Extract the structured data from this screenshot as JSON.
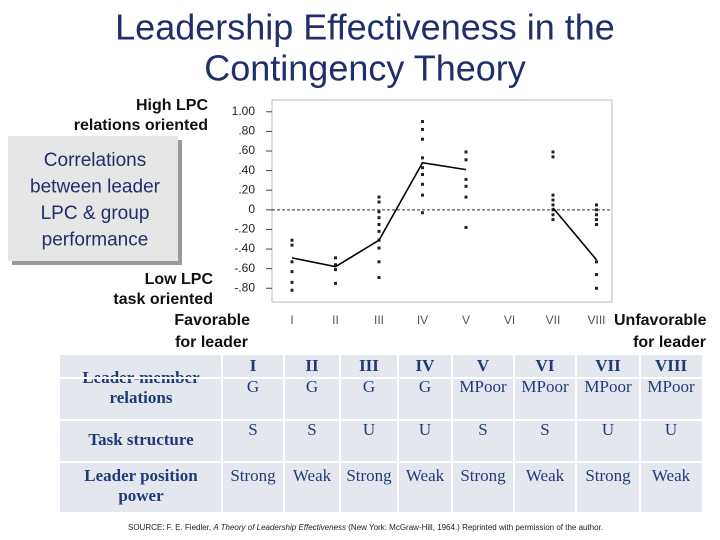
{
  "title": [
    "Leadership Effectiveness in the",
    "Contingency Theory"
  ],
  "chart_data": {
    "type": "line",
    "y_label": [
      "Correlations",
      "between leader",
      "LPC & group",
      "performance"
    ],
    "annotations": {
      "high": [
        "High LPC",
        "relations oriented"
      ],
      "low": [
        "Low LPC",
        "task oriented"
      ],
      "favorable": [
        "Favorable",
        "for leader"
      ],
      "unfavorable": [
        "Unfavorable",
        "for leader"
      ]
    },
    "categories": [
      "I",
      "II",
      "III",
      "IV",
      "V",
      "VI",
      "VII",
      "VIII"
    ],
    "series": [
      {
        "color": "#000000",
        "values": [
          -0.49,
          -0.58,
          -0.31,
          0.48,
          0.41,
          null,
          0.02,
          -0.51
        ]
      }
    ],
    "points": [
      [
        -0.31,
        -0.36,
        -0.53,
        -0.63,
        -0.74,
        -0.82
      ],
      [
        -0.49,
        -0.56,
        -0.61,
        -0.75
      ],
      [
        0.13,
        0.08,
        -0.02,
        -0.08,
        -0.15,
        -0.22,
        -0.31,
        -0.39,
        -0.53,
        -0.69
      ],
      [
        0.9,
        0.82,
        0.72,
        0.53,
        0.43,
        0.36,
        0.26,
        0.15,
        -0.03
      ],
      [
        0.59,
        0.51,
        0.31,
        0.24,
        0.13,
        -0.18
      ],
      [],
      [
        0.59,
        0.54,
        0.15,
        0.1,
        0.05,
        0,
        -0.05,
        -0.1
      ],
      [
        0.05,
        0,
        -0.05,
        -0.1,
        -0.15,
        -0.53,
        -0.66,
        -0.8
      ]
    ],
    "reference_line": 0,
    "ylim": [
      -0.94,
      1.12
    ],
    "yticks": [
      {
        "value": 1.0,
        "label": "1.00"
      },
      {
        "value": 0.8,
        "label": ".80"
      },
      {
        "value": 0.6,
        "label": ".60"
      },
      {
        "value": 0.4,
        "label": ".40"
      },
      {
        "value": 0.2,
        "label": ".20"
      },
      0,
      {
        "value": -0.2,
        "label": "-.20"
      },
      {
        "value": -0.4,
        "label": "-.40"
      },
      {
        "value": -0.6,
        "label": "-.60"
      },
      {
        "value": -0.8,
        "label": "-.80"
      }
    ]
  },
  "table": {
    "rows": [
      {
        "label": [
          "Leader-member",
          "relations"
        ],
        "cells": [
          "G",
          "G",
          "G",
          "G",
          "MPoor",
          "MPoor",
          "MPoor",
          "MPoor"
        ]
      },
      {
        "label": [
          "Task structure"
        ],
        "cells": [
          "S",
          "S",
          "U",
          "U",
          "S",
          "S",
          "U",
          "U"
        ]
      },
      {
        "label": [
          "Leader position",
          "power"
        ],
        "cells": [
          "Strong",
          "Weak",
          "Strong",
          "Weak",
          "Strong",
          "Weak",
          "Strong",
          "Weak"
        ]
      }
    ]
  },
  "source": {
    "prefix": "SOURCE: F. E. Fiedler, ",
    "book": "A Theory of Leadership Effectiveness",
    "suffix": " (New York: McGraw-Hill, 1964.) Reprinted with permission of the author."
  }
}
